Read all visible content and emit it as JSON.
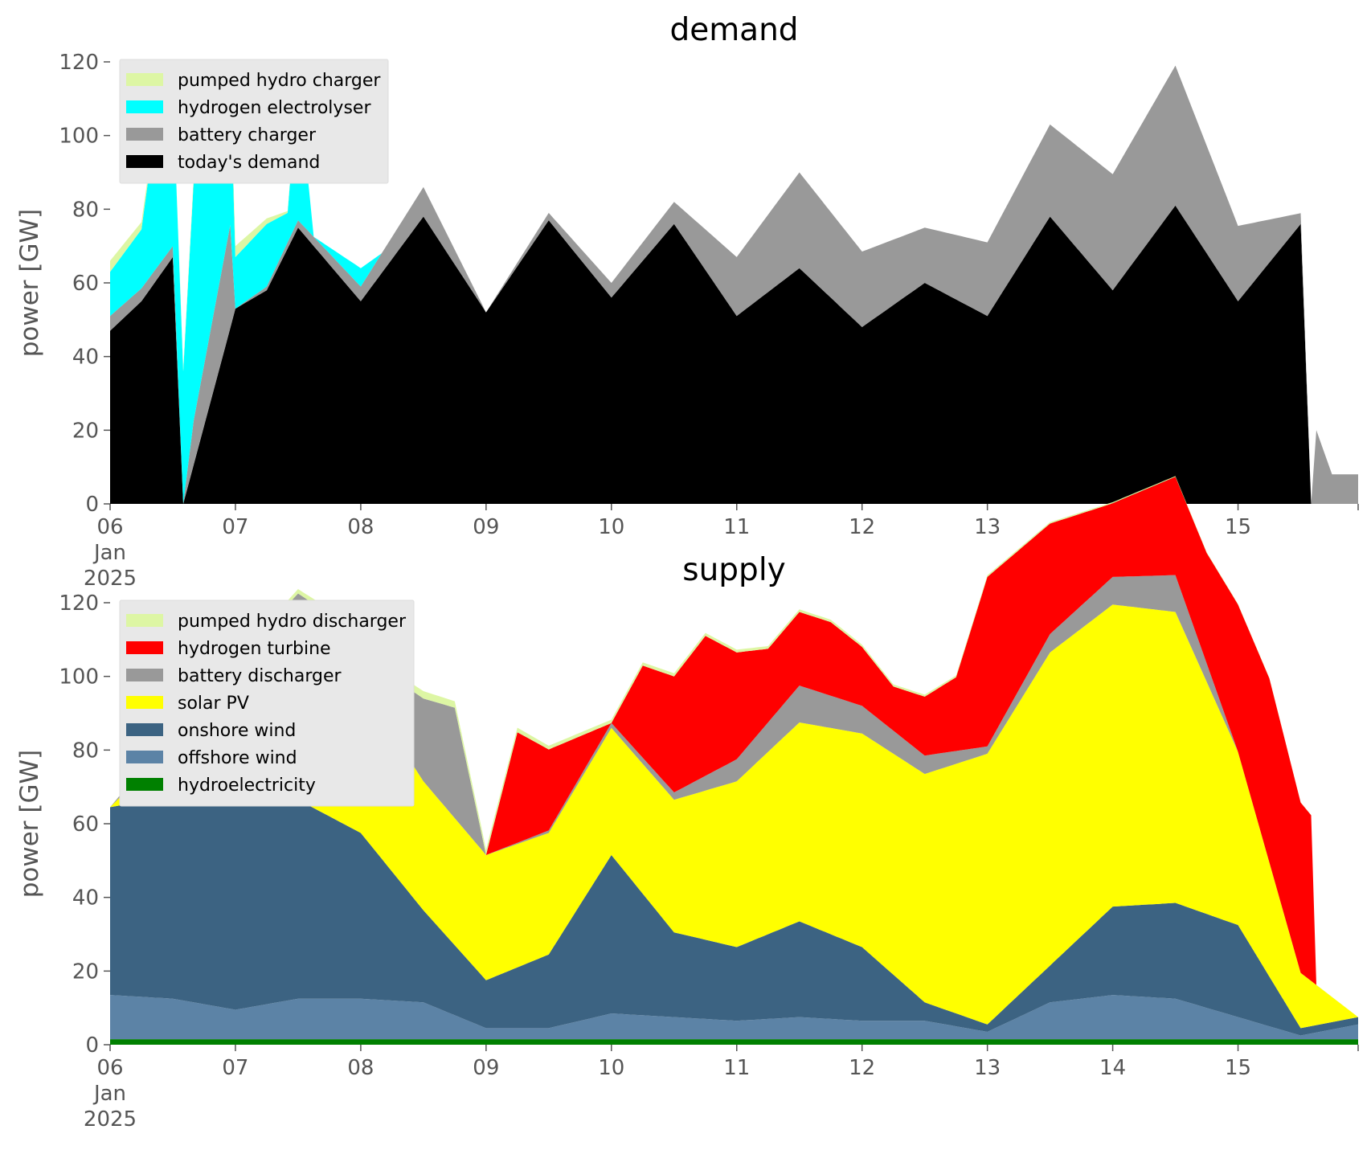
{
  "chart_data": [
    {
      "type": "area",
      "stacked": true,
      "title": "demand",
      "ylabel": "power [GW]",
      "xlabel": "",
      "x_start": "2025-01-06T00:00",
      "x_end": "2025-01-15T23:00",
      "x_ticks": [
        "06\nJan\n2025",
        "07",
        "08",
        "09",
        "10",
        "11",
        "12",
        "13",
        "14",
        "15"
      ],
      "ylim": [
        0,
        120
      ],
      "y_ticks": [
        "0",
        "20",
        "40",
        "60",
        "80",
        "100",
        "120"
      ],
      "legend_position": "upper-left",
      "grid": false,
      "series_order_bottom_to_top": [
        "today's demand",
        "battery charger",
        "hydrogen electrolyser",
        "pumped hydro charger"
      ],
      "series": [
        {
          "name": "pumped hydro charger",
          "color": "#ddf6a4",
          "points": [
            [
              "2025-01-06T00:00",
              3
            ],
            [
              "2025-01-06T06:00",
              2
            ],
            [
              "2025-01-06T12:00",
              0
            ],
            [
              "2025-01-06T18:00",
              2
            ],
            [
              "2025-01-07T00:00",
              3
            ],
            [
              "2025-01-07T12:00",
              0
            ],
            [
              "2025-01-08T00:00",
              0
            ],
            [
              "2025-01-15T23:00",
              0
            ]
          ]
        },
        {
          "name": "hydrogen electrolyser",
          "color": "#00ffff",
          "points": [
            [
              "2025-01-06T00:00",
              12
            ],
            [
              "2025-01-06T06:00",
              16
            ],
            [
              "2025-01-06T10:00",
              50
            ],
            [
              "2025-01-06T14:00",
              36
            ],
            [
              "2025-01-06T16:00",
              65
            ],
            [
              "2025-01-06T19:00",
              55
            ],
            [
              "2025-01-06T23:00",
              40
            ],
            [
              "2025-01-07T00:00",
              14
            ],
            [
              "2025-01-07T06:00",
              17
            ],
            [
              "2025-01-07T10:00",
              8
            ],
            [
              "2025-01-07T12:00",
              38
            ],
            [
              "2025-01-07T15:00",
              0
            ],
            [
              "2025-01-08T00:00",
              5
            ],
            [
              "2025-01-08T04:00",
              0
            ],
            [
              "2025-01-15T23:00",
              0
            ]
          ]
        },
        {
          "name": "battery charger",
          "color": "#999999",
          "points": [
            [
              "2025-01-06T00:00",
              4
            ],
            [
              "2025-01-06T12:00",
              3
            ],
            [
              "2025-01-06T14:00",
              0
            ],
            [
              "2025-01-06T16:00",
              12
            ],
            [
              "2025-01-06T23:00",
              28
            ],
            [
              "2025-01-07T00:00",
              0
            ],
            [
              "2025-01-08T00:00",
              4
            ],
            [
              "2025-01-08T12:00",
              8
            ],
            [
              "2025-01-09T00:00",
              0
            ],
            [
              "2025-01-10T12:00",
              6
            ],
            [
              "2025-01-11T12:00",
              26
            ],
            [
              "2025-01-12T12:00",
              15
            ],
            [
              "2025-01-13T12:00",
              25
            ],
            [
              "2025-01-14T12:00",
              38
            ],
            [
              "2025-01-15T14:00",
              0
            ],
            [
              "2025-01-15T15:00",
              20
            ],
            [
              "2025-01-15T18:00",
              8
            ],
            [
              "2025-01-15T23:00",
              8
            ]
          ]
        },
        {
          "name": "today's demand",
          "color": "#000000",
          "points": [
            [
              "2025-01-06T00:00",
              47
            ],
            [
              "2025-01-06T06:00",
              55
            ],
            [
              "2025-01-06T12:00",
              67
            ],
            [
              "2025-01-06T14:00",
              0
            ],
            [
              "2025-01-07T00:00",
              53
            ],
            [
              "2025-01-07T06:00",
              58
            ],
            [
              "2025-01-07T12:00",
              75
            ],
            [
              "2025-01-08T00:00",
              55
            ],
            [
              "2025-01-08T12:00",
              78
            ],
            [
              "2025-01-09T00:00",
              52
            ],
            [
              "2025-01-09T12:00",
              77
            ],
            [
              "2025-01-10T00:00",
              56
            ],
            [
              "2025-01-10T12:00",
              76
            ],
            [
              "2025-01-11T00:00",
              51
            ],
            [
              "2025-01-11T12:00",
              64
            ],
            [
              "2025-01-12T00:00",
              48
            ],
            [
              "2025-01-12T12:00",
              60
            ],
            [
              "2025-01-13T00:00",
              51
            ],
            [
              "2025-01-13T12:00",
              78
            ],
            [
              "2025-01-14T00:00",
              58
            ],
            [
              "2025-01-14T12:00",
              81
            ],
            [
              "2025-01-15T00:00",
              55
            ],
            [
              "2025-01-15T12:00",
              76
            ],
            [
              "2025-01-15T14:00",
              0
            ],
            [
              "2025-01-15T23:00",
              0
            ]
          ]
        }
      ]
    },
    {
      "type": "area",
      "stacked": true,
      "title": "supply",
      "ylabel": "power [GW]",
      "xlabel": "",
      "x_start": "2025-01-06T00:00",
      "x_end": "2025-01-15T23:00",
      "x_ticks": [
        "06\nJan\n2025",
        "07",
        "08",
        "09",
        "10",
        "11",
        "12",
        "13",
        "14",
        "15"
      ],
      "ylim": [
        0,
        120
      ],
      "y_ticks": [
        "0",
        "20",
        "40",
        "60",
        "80",
        "100",
        "120"
      ],
      "legend_position": "upper-left",
      "grid": false,
      "series_order_bottom_to_top": [
        "hydroelectricity",
        "offshore wind",
        "onshore wind",
        "solar PV",
        "battery discharger",
        "hydrogen turbine",
        "pumped hydro discharger"
      ],
      "series": [
        {
          "name": "pumped hydro discharger",
          "color": "#ddf6a4",
          "points": [
            [
              "2025-01-06T00:00",
              0
            ],
            [
              "2025-01-08T12:00",
              2
            ],
            [
              "2025-01-09T12:00",
              1
            ],
            [
              "2025-01-15T23:00",
              0
            ]
          ]
        },
        {
          "name": "hydrogen turbine",
          "color": "#ff0000",
          "points": [
            [
              "2025-01-06T00:00",
              0
            ],
            [
              "2025-01-09T00:00",
              0
            ],
            [
              "2025-01-09T06:00",
              30
            ],
            [
              "2025-01-09T12:00",
              22
            ],
            [
              "2025-01-10T00:00",
              0
            ],
            [
              "2025-01-10T06:00",
              25
            ],
            [
              "2025-01-10T18:00",
              38
            ],
            [
              "2025-01-11T06:00",
              20
            ],
            [
              "2025-01-11T18:00",
              20
            ],
            [
              "2025-01-12T06:00",
              12
            ],
            [
              "2025-01-12T18:00",
              20
            ],
            [
              "2025-01-13T00:00",
              46
            ],
            [
              "2025-01-13T12:00",
              30
            ],
            [
              "2025-01-14T00:00",
              20
            ],
            [
              "2025-01-14T18:00",
              30
            ],
            [
              "2025-01-15T06:00",
              50
            ],
            [
              "2025-01-15T14:00",
              45
            ],
            [
              "2025-01-15T15:00",
              0
            ],
            [
              "2025-01-15T23:00",
              0
            ]
          ]
        },
        {
          "name": "battery discharger",
          "color": "#999999",
          "points": [
            [
              "2025-01-06T00:00",
              0
            ],
            [
              "2025-01-08T06:00",
              15
            ],
            [
              "2025-01-08T18:00",
              30
            ],
            [
              "2025-01-09T00:00",
              0
            ],
            [
              "2025-01-10T12:00",
              2
            ],
            [
              "2025-01-11T12:00",
              10
            ],
            [
              "2025-01-12T12:00",
              5
            ],
            [
              "2025-01-13T00:00",
              2
            ],
            [
              "2025-01-13T12:00",
              5
            ],
            [
              "2025-01-14T12:00",
              10
            ],
            [
              "2025-01-15T00:00",
              0
            ],
            [
              "2025-01-15T23:00",
              0
            ]
          ]
        },
        {
          "name": "solar PV",
          "color": "#ffff00",
          "points": [
            [
              "2025-01-06T00:00",
              0
            ],
            [
              "2025-01-06T12:00",
              14
            ],
            [
              "2025-01-07T12:00",
              46
            ],
            [
              "2025-01-08T12:00",
              35
            ],
            [
              "2025-01-09T12:00",
              33
            ],
            [
              "2025-01-10T12:00",
              36
            ],
            [
              "2025-01-11T12:00",
              54
            ],
            [
              "2025-01-12T12:00",
              62
            ],
            [
              "2025-01-13T12:00",
              85
            ],
            [
              "2025-01-14T12:00",
              79
            ],
            [
              "2025-01-15T12:00",
              15
            ],
            [
              "2025-01-15T23:00",
              0
            ]
          ]
        },
        {
          "name": "onshore wind",
          "color": "#3c6382",
          "points": [
            [
              "2025-01-06T00:00",
              51
            ],
            [
              "2025-01-06T12:00",
              55
            ],
            [
              "2025-01-07T00:00",
              58
            ],
            [
              "2025-01-07T12:00",
              54
            ],
            [
              "2025-01-08T00:00",
              45
            ],
            [
              "2025-01-08T12:00",
              25
            ],
            [
              "2025-01-09T00:00",
              13
            ],
            [
              "2025-01-09T12:00",
              20
            ],
            [
              "2025-01-10T00:00",
              43
            ],
            [
              "2025-01-10T12:00",
              23
            ],
            [
              "2025-01-11T00:00",
              20
            ],
            [
              "2025-01-11T12:00",
              26
            ],
            [
              "2025-01-12T00:00",
              20
            ],
            [
              "2025-01-12T12:00",
              5
            ],
            [
              "2025-01-13T00:00",
              2
            ],
            [
              "2025-01-13T12:00",
              10
            ],
            [
              "2025-01-14T00:00",
              24
            ],
            [
              "2025-01-14T12:00",
              26
            ],
            [
              "2025-01-15T00:00",
              25
            ],
            [
              "2025-01-15T12:00",
              2
            ],
            [
              "2025-01-15T23:00",
              2
            ]
          ]
        },
        {
          "name": "offshore wind",
          "color": "#5c83a6",
          "points": [
            [
              "2025-01-06T00:00",
              12
            ],
            [
              "2025-01-06T12:00",
              11
            ],
            [
              "2025-01-07T00:00",
              8
            ],
            [
              "2025-01-07T12:00",
              11
            ],
            [
              "2025-01-08T00:00",
              11
            ],
            [
              "2025-01-08T12:00",
              10
            ],
            [
              "2025-01-09T00:00",
              3
            ],
            [
              "2025-01-09T12:00",
              3
            ],
            [
              "2025-01-10T00:00",
              7
            ],
            [
              "2025-01-10T12:00",
              6
            ],
            [
              "2025-01-11T00:00",
              5
            ],
            [
              "2025-01-11T12:00",
              6
            ],
            [
              "2025-01-12T00:00",
              5
            ],
            [
              "2025-01-12T12:00",
              5
            ],
            [
              "2025-01-13T00:00",
              2
            ],
            [
              "2025-01-13T12:00",
              10
            ],
            [
              "2025-01-14T00:00",
              12
            ],
            [
              "2025-01-14T12:00",
              11
            ],
            [
              "2025-01-15T00:00",
              6
            ],
            [
              "2025-01-15T12:00",
              1
            ],
            [
              "2025-01-15T23:00",
              4
            ]
          ]
        },
        {
          "name": "hydroelectricity",
          "color": "#008000",
          "points": [
            [
              "2025-01-06T00:00",
              1.5
            ],
            [
              "2025-01-15T23:00",
              1.5
            ]
          ]
        }
      ]
    }
  ]
}
